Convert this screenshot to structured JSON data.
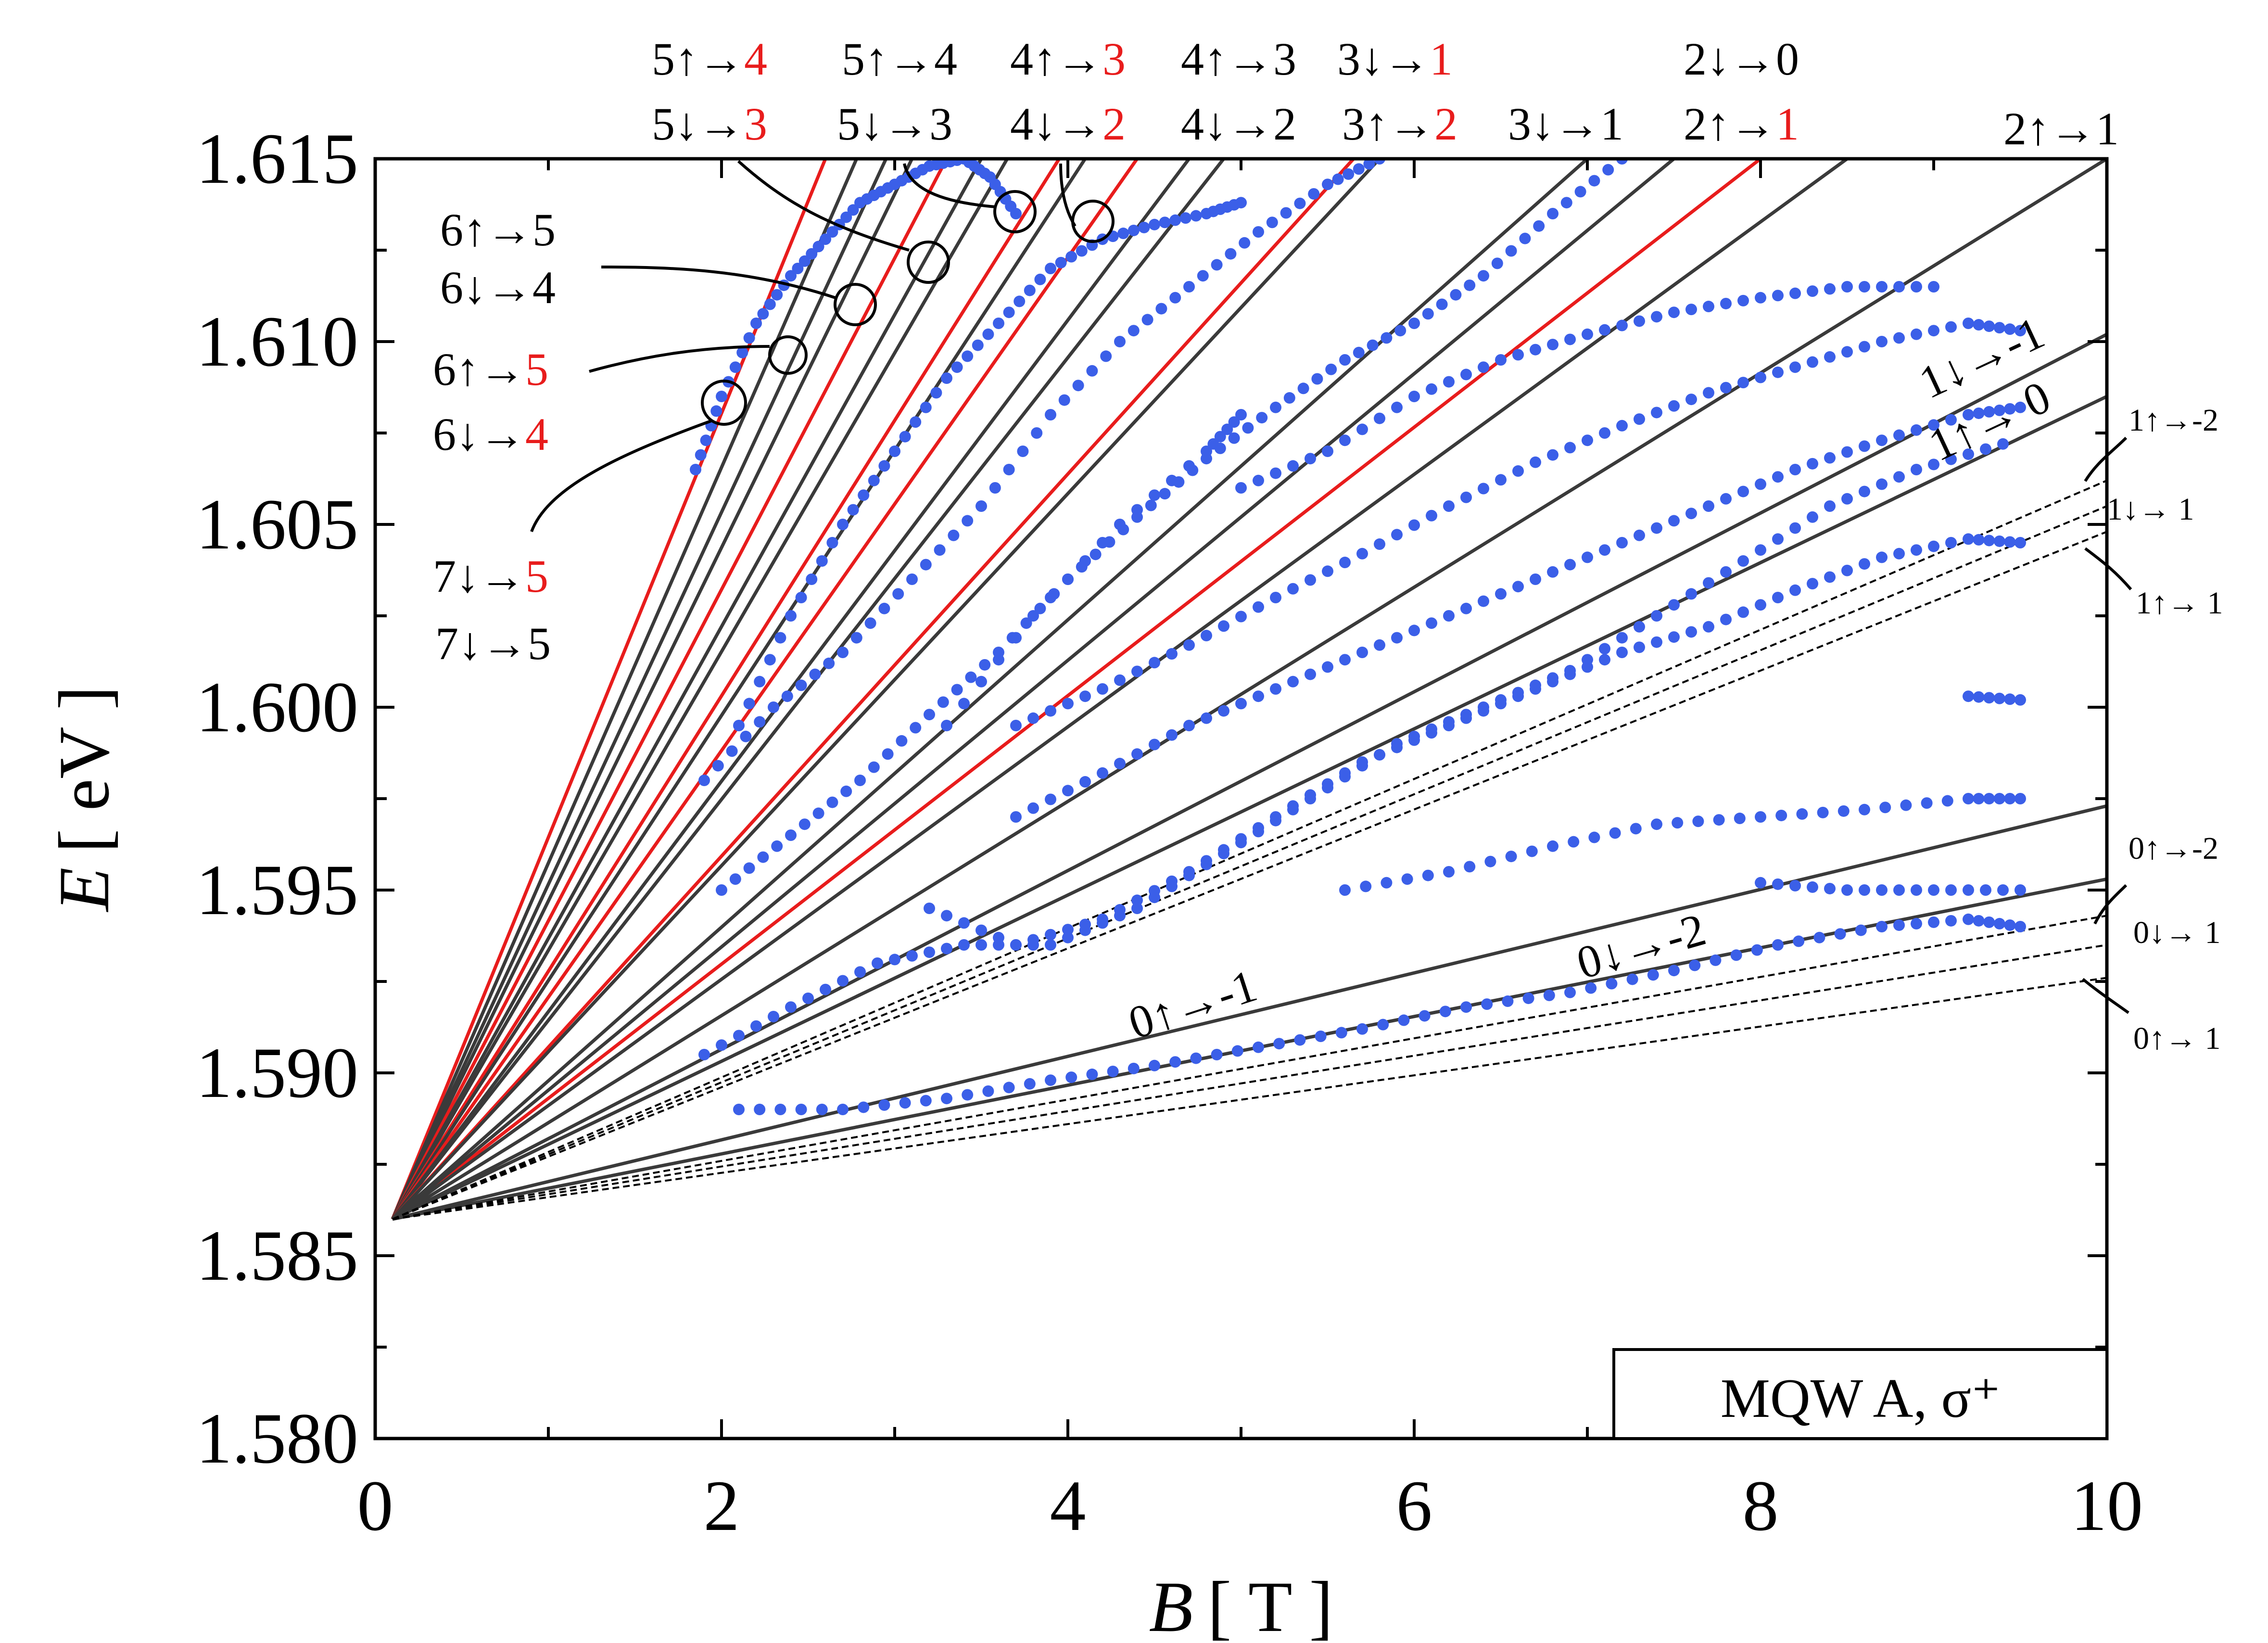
{
  "chart_data": {
    "type": "scatter",
    "title": "",
    "xlabel": {
      "symbol": "B",
      "unit": "[ T ]"
    },
    "ylabel": {
      "symbol": "E",
      "unit": "[ eV ]"
    },
    "xlim": [
      0,
      10
    ],
    "ylim": [
      1.58,
      1.615
    ],
    "x_ticks": [
      0,
      2,
      4,
      6,
      8,
      10
    ],
    "x_tick_labels": [
      "0",
      "2",
      "4",
      "6",
      "8",
      "10"
    ],
    "y_ticks": [
      1.58,
      1.585,
      1.59,
      1.595,
      1.6,
      1.605,
      1.61,
      1.615
    ],
    "y_tick_labels": [
      "1.580",
      "1.585",
      "1.590",
      "1.595",
      "1.600",
      "1.605",
      "1.610",
      "1.615"
    ],
    "legend": "MQW A, σ⁺",
    "colors": {
      "data": "#3b5fe8",
      "theory_black": "#3a3a3a",
      "theory_red": "#e81c1c",
      "dashed": "#000000"
    },
    "origin": {
      "B": 0.1,
      "E": 1.586
    },
    "lines": [
      {
        "style": "red",
        "end_B": 2.6
      },
      {
        "style": "black",
        "end_B": 2.78
      },
      {
        "style": "black",
        "end_B": 2.95
      },
      {
        "style": "black",
        "end_B": 3.1
      },
      {
        "style": "red",
        "end_B": 3.3
      },
      {
        "style": "black",
        "end_B": 3.5
      },
      {
        "style": "black",
        "end_B": 3.65
      },
      {
        "style": "red",
        "end_B": 3.95
      },
      {
        "style": "black",
        "end_B": 4.1
      },
      {
        "style": "red",
        "end_B": 4.4
      },
      {
        "style": "black",
        "end_B": 4.7
      },
      {
        "style": "black",
        "end_B": 4.9
      },
      {
        "style": "red",
        "end_B": 5.65
      },
      {
        "style": "black",
        "end_B": 5.8
      },
      {
        "style": "red",
        "end_B": 8.0
      },
      {
        "style": "black",
        "end_B": 7.5
      },
      {
        "style": "black",
        "end_B": 7.0
      },
      {
        "style": "black",
        "end_B": 8.5
      },
      {
        "style": "black",
        "end_B": 10,
        "end_E": 1.615
      },
      {
        "style": "black",
        "end_B": 10,
        "end_E": 1.6102
      },
      {
        "style": "black",
        "end_B": 10,
        "end_E": 1.6085
      },
      {
        "style": "black",
        "end_B": 10,
        "end_E": 1.5973
      },
      {
        "style": "black",
        "end_B": 10,
        "end_E": 1.5953
      },
      {
        "style": "dashed",
        "end_B": 10,
        "end_E": 1.6062
      },
      {
        "style": "dashed",
        "end_B": 10,
        "end_E": 1.6055
      },
      {
        "style": "dashed",
        "end_B": 10,
        "end_E": 1.6048
      },
      {
        "style": "dashed",
        "end_B": 10,
        "end_E": 1.5943
      },
      {
        "style": "dashed",
        "end_B": 10,
        "end_E": 1.5935
      },
      {
        "style": "dashed",
        "end_B": 10,
        "end_E": 1.5926
      }
    ],
    "series": [
      {
        "name": "data-1",
        "B": [
          1.85,
          2.0,
          2.2,
          2.4,
          2.6,
          2.8,
          3.0,
          3.2,
          3.4,
          3.55,
          3.7
        ],
        "E": [
          1.6065,
          1.6085,
          1.6105,
          1.6118,
          1.6128,
          1.6138,
          1.6143,
          1.6148,
          1.615,
          1.6145,
          1.6135
        ]
      },
      {
        "name": "data-2",
        "B": [
          2.1,
          2.4,
          2.7,
          3.0,
          3.3,
          3.6,
          3.9,
          4.2,
          4.5,
          4.8,
          5.0
        ],
        "E": [
          1.5995,
          1.6025,
          1.605,
          1.607,
          1.609,
          1.6105,
          1.612,
          1.6128,
          1.6132,
          1.6135,
          1.6138
        ]
      },
      {
        "name": "data-3",
        "B": [
          1.9,
          2.3,
          2.7,
          3.1,
          3.5,
          3.9,
          4.3,
          4.7,
          5.1,
          5.5,
          5.8
        ],
        "E": [
          1.598,
          1.6,
          1.6015,
          1.6035,
          1.6055,
          1.608,
          1.61,
          1.6115,
          1.613,
          1.6143,
          1.615
        ]
      },
      {
        "name": "data-4",
        "B": [
          3.3,
          3.8,
          4.3,
          4.8,
          5.0
        ],
        "E": [
          1.5995,
          1.6025,
          1.605,
          1.607,
          1.608
        ]
      },
      {
        "name": "data-5",
        "B": [
          2.0,
          2.4,
          2.8,
          3.2,
          3.6,
          4.0,
          4.4,
          4.8,
          5.2,
          5.6,
          6.0,
          6.4,
          6.8,
          7.2
        ],
        "E": [
          1.595,
          1.5965,
          1.598,
          1.5998,
          1.6015,
          1.6035,
          1.6052,
          1.6068,
          1.6082,
          1.6095,
          1.6105,
          1.6118,
          1.6135,
          1.615
        ]
      },
      {
        "name": "data-6",
        "B": [
          5.0,
          5.5,
          6.0,
          6.5,
          7.0,
          7.5,
          8.0,
          8.5,
          9.0
        ],
        "E": [
          1.606,
          1.607,
          1.6085,
          1.6095,
          1.6102,
          1.6108,
          1.6112,
          1.6115,
          1.6115
        ]
      },
      {
        "name": "data-7",
        "B": [
          3.7,
          4.2,
          4.7,
          5.2,
          5.7,
          6.2,
          6.7,
          7.2,
          7.7,
          8.2,
          8.7,
          9.2,
          9.5
        ],
        "E": [
          1.5995,
          1.6005,
          1.6017,
          1.603,
          1.6042,
          1.6055,
          1.6067,
          1.6077,
          1.6086,
          1.6093,
          1.61,
          1.6105,
          1.6103
        ]
      },
      {
        "name": "data-8",
        "B": [
          3.7,
          4.2,
          4.7,
          5.2,
          5.7,
          6.2,
          6.7,
          7.2,
          7.7,
          8.2,
          8.7,
          9.2,
          9.5
        ],
        "E": [
          1.597,
          1.5982,
          1.5995,
          1.6005,
          1.6015,
          1.6025,
          1.6035,
          1.6045,
          1.6055,
          1.6065,
          1.6073,
          1.608,
          1.6082
        ]
      },
      {
        "name": "data-9",
        "B": [
          1.9,
          2.4,
          2.9,
          3.4,
          3.9,
          4.4,
          4.9,
          5.4,
          5.9,
          6.4,
          6.9,
          7.4,
          7.9,
          8.4,
          8.9,
          9.4
        ],
        "E": [
          1.5905,
          1.5918,
          1.593,
          1.5935,
          1.5935,
          1.5945,
          1.596,
          1.5975,
          1.599,
          1.6,
          1.601,
          1.6025,
          1.604,
          1.6055,
          1.6065,
          1.6072
        ]
      },
      {
        "name": "data-10",
        "B": [
          3.2,
          3.7,
          4.2,
          4.7,
          5.2,
          5.7,
          6.2,
          6.7,
          7.2,
          7.7,
          8.2,
          8.7,
          9.2,
          9.5
        ],
        "E": [
          1.5945,
          1.5935,
          1.5942,
          1.5955,
          1.597,
          1.5985,
          1.5995,
          1.6005,
          1.6015,
          1.6022,
          1.6032,
          1.6041,
          1.6046,
          1.6045
        ]
      },
      {
        "name": "data-11",
        "B": [
          9.2,
          9.5
        ],
        "E": [
          1.6003,
          1.6002
        ]
      },
      {
        "name": "data-12",
        "B": [
          5.6,
          6.2,
          6.8,
          7.4,
          8.0,
          8.6,
          9.2,
          9.5
        ],
        "E": [
          1.595,
          1.5955,
          1.5962,
          1.5968,
          1.597,
          1.5972,
          1.5975,
          1.5975
        ]
      },
      {
        "name": "data-13",
        "B": [
          2.1,
          2.7,
          3.3,
          3.9,
          4.5,
          5.1,
          5.7,
          6.3,
          6.9,
          7.5,
          8.1,
          8.7,
          9.2,
          9.5
        ],
        "E": [
          1.589,
          1.589,
          1.5893,
          1.5898,
          1.5902,
          1.5907,
          1.5912,
          1.5918,
          1.5922,
          1.5928,
          1.5935,
          1.594,
          1.5942,
          1.594
        ]
      },
      {
        "name": "data-14",
        "B": [
          8.0,
          8.5,
          9.0,
          9.5
        ],
        "E": [
          1.5952,
          1.595,
          1.595,
          1.595
        ]
      }
    ],
    "annotations": [
      {
        "line1": "5↑→",
        "line1_num": "4",
        "line1_red": true,
        "line2": "5↓→",
        "line2_num": "3",
        "line2_red": true
      },
      {
        "line1": "5↑→",
        "line1_num": "4",
        "line1_red": false,
        "line2": "5↓→",
        "line2_num": "3",
        "line2_red": false
      },
      {
        "line1": "4↑→",
        "line1_num": "3",
        "line1_red": true,
        "line2": "4↓→",
        "line2_num": "2",
        "line2_red": true
      },
      {
        "line1": "4↑→",
        "line1_num": "3",
        "line1_red": false,
        "line2": "4↓→",
        "line2_num": "2",
        "line2_red": false
      },
      {
        "line1": "3↓→",
        "line1_num": "1",
        "line1_red": true,
        "line2": "3↑→",
        "line2_num": "2",
        "line2_red": true
      },
      {
        "line2": "3↓→",
        "line2_num": "1",
        "line2_red": false
      },
      {
        "line1": "2↓→",
        "line1_num": "0",
        "line1_red": false,
        "line2": "2↑→",
        "line2_num": "1",
        "line2_red": true
      },
      {
        "line2": "2↑→",
        "line2_num": "1",
        "line2_red": false
      }
    ],
    "left_labels": [
      {
        "line1": "6↑→",
        "line1_num": "5",
        "line1_red": false,
        "line2": "6↓→",
        "line2_num": "4",
        "line2_red": false
      },
      {
        "line1": "6↑→",
        "line1_num": "5",
        "line1_red": true,
        "line2": "6↓→",
        "line2_num": "4",
        "line2_red": true
      },
      {
        "line1": "7↓→",
        "line1_num": "5",
        "line1_red": true,
        "line2": "7↓→",
        "line2_num": "5",
        "line2_red": false
      }
    ],
    "right_labels": {
      "l1m1": "1↓→-1",
      "l1p0": "1↑→ 0",
      "l1m2": "1↑→-2",
      "l1d1": "1↓→ 1",
      "l1u1": "1↑→ 1",
      "l0m2": "0↑→-2",
      "l0d1": "0↓→ 1",
      "l0u1": "0↑→ 1"
    },
    "in_plot_labels": {
      "zero_up_m1": "0↑→-1",
      "zero_down_m2": "0↓→-2"
    }
  }
}
